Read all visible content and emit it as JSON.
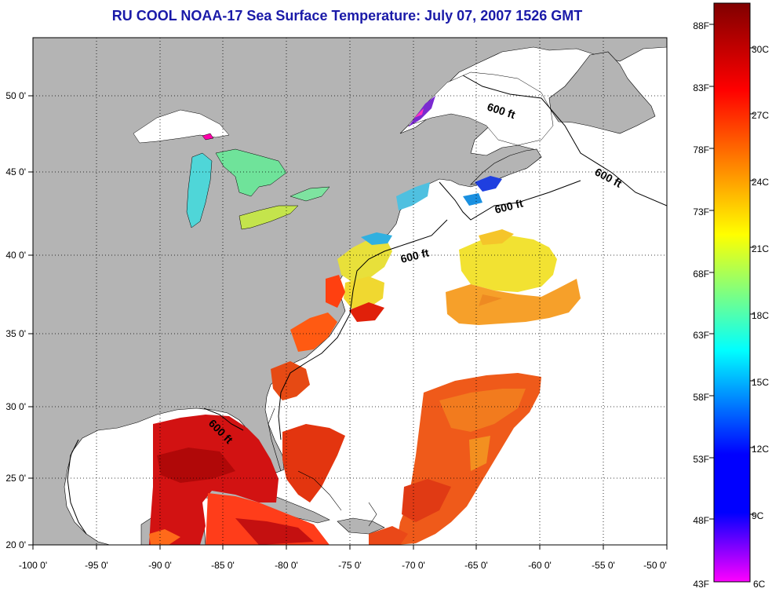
{
  "title": "RU COOL  NOAA-17  Sea Surface Temperature:  July 07, 2007 1526 GMT",
  "x_ticks": [
    "-100 0'",
    "-95 0'",
    "-90 0'",
    "-85 0'",
    "-80 0'",
    "-75 0'",
    "-70 0'",
    "-65 0'",
    "-60 0'",
    "-55 0'",
    "-50 0'"
  ],
  "y_ticks": [
    "50 0'",
    "45 0'",
    "40 0'",
    "35 0'",
    "30 0'",
    "25 0'",
    "20 0'"
  ],
  "contour_labels": [
    "600 ft",
    "600 ft",
    "600 ft",
    "600 ft",
    "600 ft"
  ],
  "colorbar": {
    "fahrenheit": [
      "88F",
      "83F",
      "78F",
      "73F",
      "68F",
      "63F",
      "58F",
      "53F",
      "48F",
      "43F"
    ],
    "celsius": [
      "30C",
      "27C",
      "24C",
      "21C",
      "18C",
      "15C",
      "12C",
      "9C",
      "6C"
    ],
    "colors": [
      "#ff00ff",
      "#0000ff",
      "#00ffff",
      "#ffff00",
      "#ff0000",
      "#800000"
    ]
  },
  "colors": {
    "land": "#b4b4b4",
    "ocean_no_data": "#ffffff",
    "title": "#1a1aa8"
  }
}
